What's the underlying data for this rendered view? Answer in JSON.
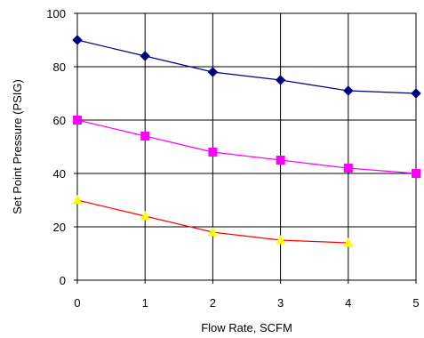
{
  "chart_data": {
    "type": "line",
    "title": "",
    "xlabel": "Flow Rate, SCFM",
    "ylabel": "Set Point Pressure (PSIG)",
    "xlim": [
      0,
      5
    ],
    "ylim": [
      0,
      100
    ],
    "x_ticks": [
      "0",
      "1",
      "2",
      "3",
      "4",
      "5"
    ],
    "y_ticks": [
      "0",
      "20",
      "40",
      "60",
      "80",
      "100"
    ],
    "grid": true,
    "legend": "none",
    "series": [
      {
        "color": "#000080",
        "marker": "diamond",
        "marker_color": "#000080",
        "x": [
          0,
          1,
          2,
          3,
          4,
          5
        ],
        "values": [
          90,
          84,
          78,
          75,
          71,
          70
        ]
      },
      {
        "color": "#FF00FF",
        "marker": "square",
        "marker_color": "#FF00FF",
        "x": [
          0,
          1,
          2,
          3,
          4,
          5
        ],
        "values": [
          60,
          54,
          48,
          45,
          42,
          40
        ]
      },
      {
        "color": "#FF0000",
        "marker": "triangle",
        "marker_color": "#FFFF00",
        "x": [
          0,
          1,
          2,
          3,
          4
        ],
        "values": [
          30,
          24,
          18,
          15,
          14
        ]
      }
    ]
  }
}
